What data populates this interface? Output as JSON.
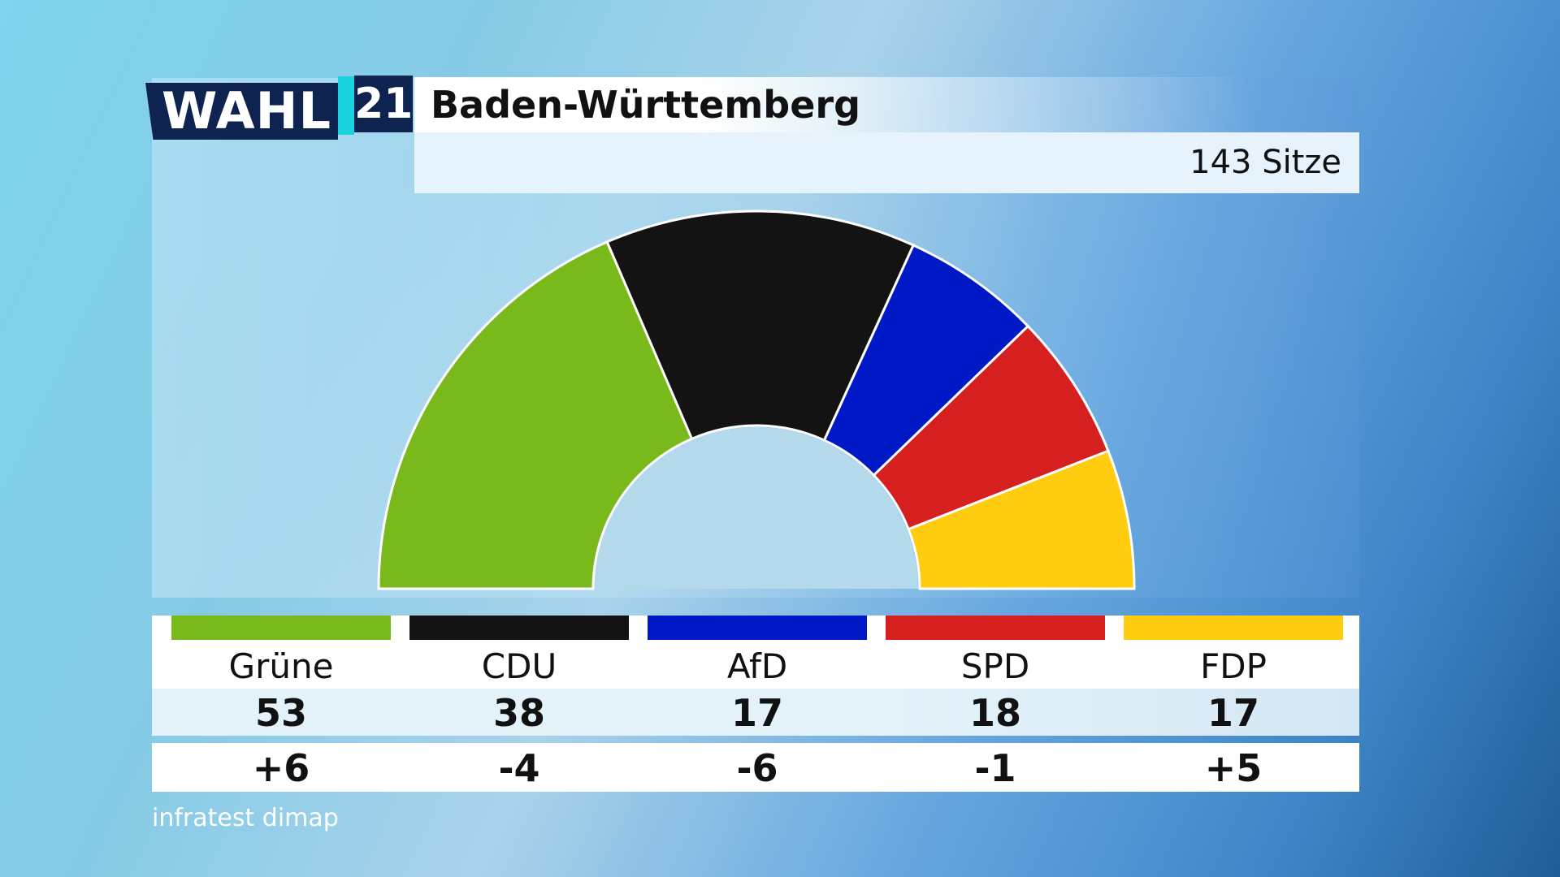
{
  "logo": {
    "word": "WAHL",
    "year": "21"
  },
  "header": {
    "title": "Baden-Württemberg",
    "seats_total_label": "143 Sitze"
  },
  "chart_data": {
    "type": "pie",
    "subtype": "semicircle-parliament",
    "total": 143,
    "categories": [
      "Grüne",
      "CDU",
      "AfD",
      "SPD",
      "FDP"
    ],
    "values": [
      53,
      38,
      17,
      18,
      17
    ],
    "changes": [
      "+6",
      "-4",
      "-6",
      "-1",
      "+5"
    ],
    "colors": [
      "#79b91c",
      "#131313",
      "#0019c7",
      "#d61f1f",
      "#ffcc0f"
    ]
  },
  "parties": [
    {
      "name": "Grüne",
      "seats": "53",
      "change": "+6",
      "color": "#79b91c"
    },
    {
      "name": "CDU",
      "seats": "38",
      "change": "-4",
      "color": "#131313"
    },
    {
      "name": "AfD",
      "seats": "17",
      "change": "-6",
      "color": "#0019c7"
    },
    {
      "name": "SPD",
      "seats": "18",
      "change": "-1",
      "color": "#d61f1f"
    },
    {
      "name": "FDP",
      "seats": "17",
      "change": "+5",
      "color": "#ffcc0f"
    }
  ],
  "footer": {
    "source": "infratest dimap"
  }
}
